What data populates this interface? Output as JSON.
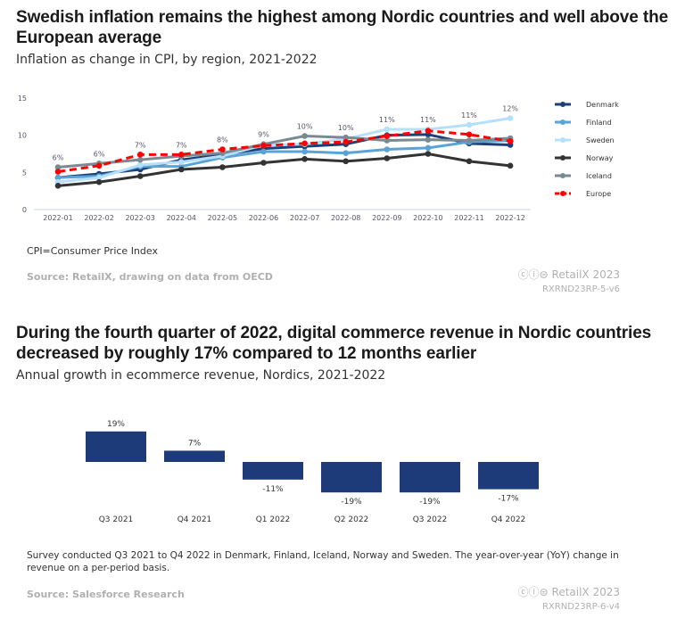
{
  "chart1": {
    "title": "Swedish inflation remains the highest among Nordic countries and well above the European average",
    "subtitle": "Inflation as change in CPI, by region, 2021-2022",
    "note": "CPI=Consumer Price Index",
    "source": "Source: RetailX, drawing on data from OECD",
    "brand": "RetailX 2023",
    "code": "RXRND23RP-5-v6"
  },
  "chart2": {
    "title": "During the fourth quarter of 2022, digital commerce revenue in Nordic countries decreased by roughly 17% compared to 12 months earlier",
    "subtitle": "Annual growth in ecommerce revenue, Nordics, 2021-2022",
    "note": "Survey conducted Q3 2021 to Q4 2022 in Denmark, Finland, Iceland, Norway and Sweden. The year-over-year (YoY) change in revenue on a per-period basis.",
    "source": "Source: Salesforce Research",
    "brand": "RetailX 2023",
    "code": "RXRND23RP-6-v4"
  },
  "chart_data": [
    {
      "type": "line",
      "x": [
        "2022-01",
        "2022-02",
        "2022-03",
        "2022-04",
        "2022-05",
        "2022-06",
        "2022-07",
        "2022-08",
        "2022-09",
        "2022-10",
        "2022-11",
        "2022-12"
      ],
      "ylim": [
        0,
        15
      ],
      "yticks": [
        0,
        5,
        10,
        15
      ],
      "legend": "right",
      "grid": false,
      "labels": [
        "6%",
        "6%",
        "7%",
        "7%",
        "8%",
        "9%",
        "10%",
        "10%",
        "11%",
        "11%",
        "11%",
        "12%"
      ],
      "series": [
        {
          "name": "Denmark",
          "color": "#1c3f7a",
          "dash": false,
          "values": [
            4.3,
            4.8,
            5.4,
            6.7,
            7.4,
            8.2,
            8.5,
            8.8,
            10.0,
            10.1,
            8.9,
            8.7
          ]
        },
        {
          "name": "Finland",
          "color": "#5aa3d6",
          "dash": false,
          "values": [
            4.3,
            4.5,
            5.8,
            5.8,
            7.0,
            7.8,
            7.8,
            7.6,
            8.1,
            8.3,
            9.1,
            9.3
          ]
        },
        {
          "name": "Sweden",
          "color": "#b5e0fb",
          "dash": false,
          "values": [
            3.7,
            4.3,
            6.0,
            6.4,
            7.2,
            8.7,
            8.8,
            9.5,
            10.8,
            10.8,
            11.4,
            12.3
          ]
        },
        {
          "name": "Norway",
          "color": "#333333",
          "dash": false,
          "values": [
            3.2,
            3.7,
            4.5,
            5.4,
            5.7,
            6.3,
            6.8,
            6.5,
            6.9,
            7.5,
            6.5,
            5.9
          ]
        },
        {
          "name": "Iceland",
          "color": "#7a8a90",
          "dash": false,
          "values": [
            5.7,
            6.2,
            6.7,
            7.2,
            7.6,
            8.8,
            9.9,
            9.7,
            9.3,
            9.4,
            9.3,
            9.6
          ]
        },
        {
          "name": "Europe",
          "color": "#ff0000",
          "dash": true,
          "values": [
            5.1,
            5.9,
            7.4,
            7.4,
            8.1,
            8.6,
            8.9,
            9.1,
            9.9,
            10.6,
            10.1,
            9.2
          ]
        }
      ]
    },
    {
      "type": "bar",
      "categories": [
        "Q3 2021",
        "Q4 2021",
        "Q1 2022",
        "Q2 2022",
        "Q3 2022",
        "Q4 2022"
      ],
      "values": [
        19,
        7,
        -11,
        -19,
        -19,
        -17
      ],
      "labels": [
        "19%",
        "7%",
        "-11%",
        "-19%",
        "-19%",
        "-17%"
      ],
      "color": "#1c3b78"
    }
  ]
}
